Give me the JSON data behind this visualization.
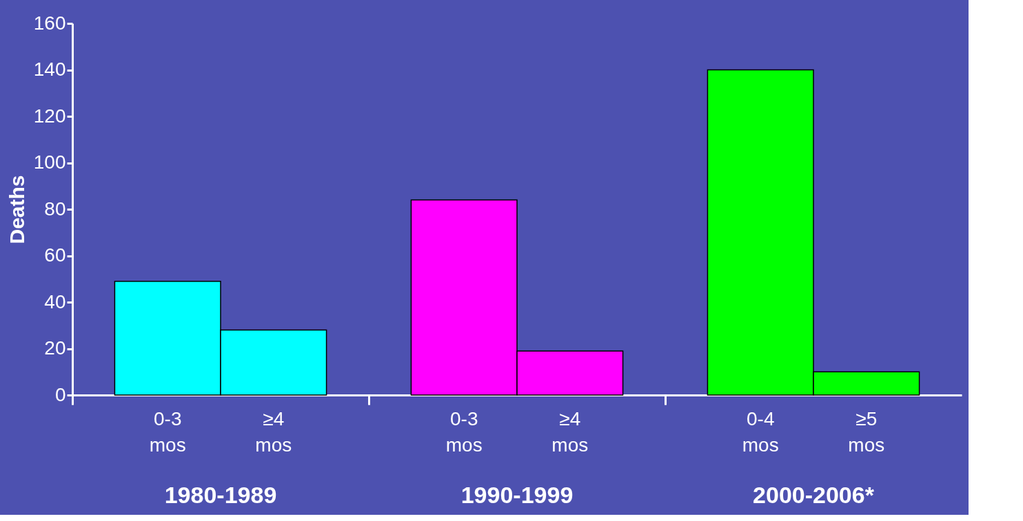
{
  "chart_data": {
    "type": "bar",
    "ylabel": "Deaths",
    "categories": [
      "0-3 mos",
      "≥4 mos",
      "0-3 mos",
      "≥4 mos",
      "0-4 mos",
      "≥5 mos"
    ],
    "values": [
      49,
      28,
      84,
      19,
      140,
      10
    ],
    "colors": [
      "#00ffff",
      "#00ffff",
      "#ff00ff",
      "#ff00ff",
      "#00ff00",
      "#00ff00"
    ],
    "ylim": [
      0,
      160
    ],
    "yticks": [
      0,
      20,
      40,
      60,
      80,
      100,
      120,
      140,
      160
    ],
    "annotations": [
      "1980-1989",
      "1990-1999",
      "2000-2006*"
    ],
    "grid": false
  }
}
